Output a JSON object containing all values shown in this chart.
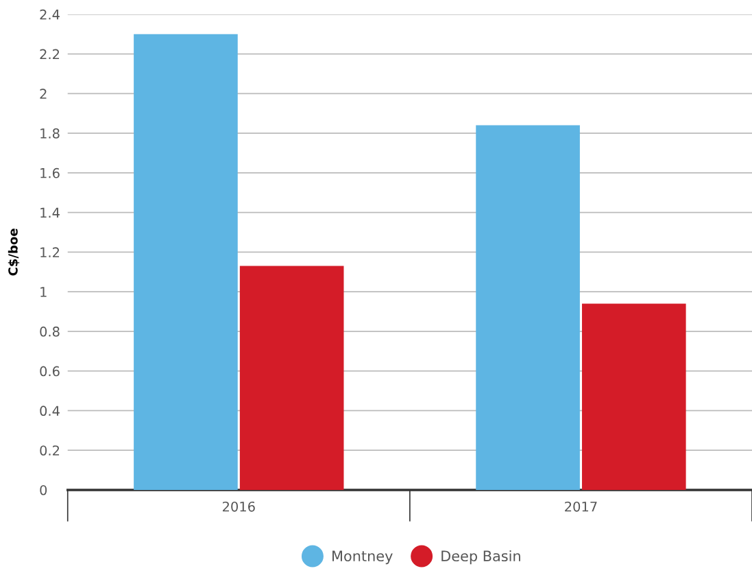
{
  "chart_data": {
    "type": "bar",
    "ylabel": "C$/boe",
    "categories": [
      "2016",
      "2017"
    ],
    "series": [
      {
        "name": "Montney",
        "color": "#5eb5e3",
        "values": [
          2.3,
          1.84
        ]
      },
      {
        "name": "Deep Basin",
        "color": "#d41c28",
        "values": [
          1.13,
          0.94
        ]
      }
    ],
    "ylim": [
      0,
      2.4
    ],
    "yticks": [
      0,
      0.2,
      0.4,
      0.6,
      0.8,
      1,
      1.2,
      1.4,
      1.6,
      1.8,
      2,
      2.2,
      2.4
    ],
    "grid": "y",
    "legend": "bottom"
  }
}
